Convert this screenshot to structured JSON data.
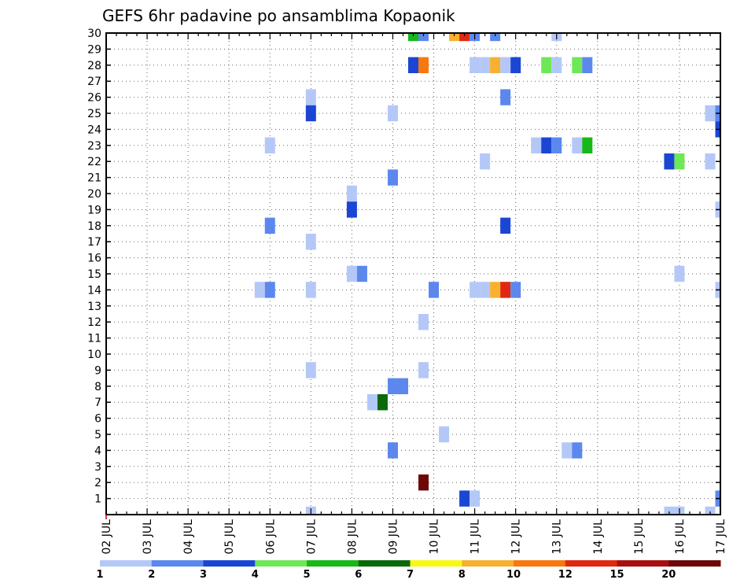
{
  "chart_data": {
    "type": "heatmap",
    "title": "GEFS 6hr padavine po ansamblima Kopaonik",
    "x_tick_labels": [
      "02 JUL",
      "03 JUL",
      "04 JUL",
      "05 JUL",
      "06 JUL",
      "07 JUL",
      "08 JUL",
      "09 JUL",
      "10 JUL",
      "11 JUL",
      "12 JUL",
      "13 JUL",
      "14 JUL",
      "15 JUL",
      "16 JUL",
      "17 JUL"
    ],
    "y_tick_labels": [
      "1",
      "2",
      "3",
      "4",
      "5",
      "6",
      "7",
      "8",
      "9",
      "10",
      "11",
      "12",
      "13",
      "14",
      "15",
      "16",
      "17",
      "18",
      "19",
      "20",
      "21",
      "22",
      "23",
      "24",
      "25",
      "26",
      "27",
      "28",
      "29",
      "30"
    ],
    "xlim": [
      0,
      60
    ],
    "ylim": [
      0,
      30
    ],
    "grid": true,
    "legend_placement": "bottom",
    "legend": {
      "labels": [
        "1",
        "2",
        "3",
        "4",
        "5",
        "6",
        "7",
        "8",
        "10",
        "12",
        "15",
        "20"
      ],
      "colors": [
        "#b4c8f8",
        "#5c88ee",
        "#1b46d4",
        "#6ee858",
        "#18b818",
        "#0a6a0a",
        "#f8f818",
        "#f8b030",
        "#f87810",
        "#e02810",
        "#a81010",
        "#6e0808"
      ]
    },
    "cells": [
      {
        "t": 30,
        "m": 30,
        "c": 5
      },
      {
        "t": 31,
        "m": 30,
        "c": 2
      },
      {
        "t": 34,
        "m": 30,
        "c": 8
      },
      {
        "t": 35,
        "m": 30,
        "c": 10
      },
      {
        "t": 36,
        "m": 30,
        "c": 2
      },
      {
        "t": 38,
        "m": 30,
        "c": 2
      },
      {
        "t": 44,
        "m": 30,
        "c": 1
      },
      {
        "t": 30,
        "m": 28,
        "c": 3
      },
      {
        "t": 31,
        "m": 28,
        "c": 9
      },
      {
        "t": 36,
        "m": 28,
        "c": 1
      },
      {
        "t": 37,
        "m": 28,
        "c": 1
      },
      {
        "t": 38,
        "m": 28,
        "c": 8
      },
      {
        "t": 39,
        "m": 28,
        "c": 1
      },
      {
        "t": 40,
        "m": 28,
        "c": 3
      },
      {
        "t": 43,
        "m": 28,
        "c": 4
      },
      {
        "t": 44,
        "m": 28,
        "c": 1
      },
      {
        "t": 46,
        "m": 28,
        "c": 4
      },
      {
        "t": 47,
        "m": 28,
        "c": 2
      },
      {
        "t": 20,
        "m": 26,
        "c": 1
      },
      {
        "t": 39,
        "m": 26,
        "c": 2
      },
      {
        "t": 20,
        "m": 25,
        "c": 3
      },
      {
        "t": 28,
        "m": 25,
        "c": 1
      },
      {
        "t": 59,
        "m": 25,
        "c": 1
      },
      {
        "t": 60,
        "m": 25,
        "c": 2
      },
      {
        "t": 60,
        "m": 24,
        "c": 3
      },
      {
        "t": 16,
        "m": 23,
        "c": 1
      },
      {
        "t": 42,
        "m": 23,
        "c": 1
      },
      {
        "t": 43,
        "m": 23,
        "c": 3
      },
      {
        "t": 44,
        "m": 23,
        "c": 2
      },
      {
        "t": 46,
        "m": 23,
        "c": 1
      },
      {
        "t": 47,
        "m": 23,
        "c": 5
      },
      {
        "t": 37,
        "m": 22,
        "c": 1
      },
      {
        "t": 55,
        "m": 22,
        "c": 3
      },
      {
        "t": 56,
        "m": 22,
        "c": 4
      },
      {
        "t": 59,
        "m": 22,
        "c": 1
      },
      {
        "t": 28,
        "m": 21,
        "c": 2
      },
      {
        "t": 24,
        "m": 20,
        "c": 1
      },
      {
        "t": 24,
        "m": 19,
        "c": 3
      },
      {
        "t": 60,
        "m": 19,
        "c": 1
      },
      {
        "t": 16,
        "m": 18,
        "c": 2
      },
      {
        "t": 39,
        "m": 18,
        "c": 3
      },
      {
        "t": 20,
        "m": 17,
        "c": 1
      },
      {
        "t": 24,
        "m": 15,
        "c": 1
      },
      {
        "t": 25,
        "m": 15,
        "c": 2
      },
      {
        "t": 56,
        "m": 15,
        "c": 1
      },
      {
        "t": 15,
        "m": 14,
        "c": 1
      },
      {
        "t": 16,
        "m": 14,
        "c": 2
      },
      {
        "t": 20,
        "m": 14,
        "c": 1
      },
      {
        "t": 32,
        "m": 14,
        "c": 2
      },
      {
        "t": 36,
        "m": 14,
        "c": 1
      },
      {
        "t": 37,
        "m": 14,
        "c": 1
      },
      {
        "t": 38,
        "m": 14,
        "c": 8
      },
      {
        "t": 39,
        "m": 14,
        "c": 10
      },
      {
        "t": 40,
        "m": 14,
        "c": 2
      },
      {
        "t": 60,
        "m": 14,
        "c": 1
      },
      {
        "t": 31,
        "m": 12,
        "c": 1
      },
      {
        "t": 20,
        "m": 9,
        "c": 1
      },
      {
        "t": 31,
        "m": 9,
        "c": 1
      },
      {
        "t": 28,
        "m": 8,
        "c": 2
      },
      {
        "t": 29,
        "m": 8,
        "c": 2
      },
      {
        "t": 26,
        "m": 7,
        "c": 1
      },
      {
        "t": 27,
        "m": 7,
        "c": 6
      },
      {
        "t": 33,
        "m": 5,
        "c": 1
      },
      {
        "t": 28,
        "m": 4,
        "c": 2
      },
      {
        "t": 45,
        "m": 4,
        "c": 1
      },
      {
        "t": 46,
        "m": 4,
        "c": 2
      },
      {
        "t": 31,
        "m": 2,
        "c": 12
      },
      {
        "t": 35,
        "m": 1,
        "c": 3
      },
      {
        "t": 36,
        "m": 1,
        "c": 1
      },
      {
        "t": 60,
        "m": 1,
        "c": 2
      },
      {
        "t": 20,
        "m": 0,
        "c": 1
      },
      {
        "t": 55,
        "m": 0,
        "c": 1
      },
      {
        "t": 56,
        "m": 0,
        "c": 1
      },
      {
        "t": 59,
        "m": 0,
        "c": 1
      }
    ]
  }
}
